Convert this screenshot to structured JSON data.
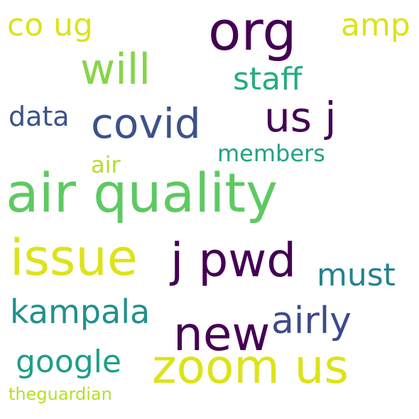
{
  "words": [
    {
      "id": "air-quality",
      "text": "air quality",
      "color": "#5ec962"
    },
    {
      "id": "org",
      "text": "org",
      "color": "#440154"
    },
    {
      "id": "zoom-us",
      "text": "zoom us",
      "color": "#dde318"
    },
    {
      "id": "issue",
      "text": "issue",
      "color": "#dde318"
    },
    {
      "id": "j-pwd",
      "text": "j pwd",
      "color": "#440154"
    },
    {
      "id": "new",
      "text": "new",
      "color": "#440154"
    },
    {
      "id": "will",
      "text": "will",
      "color": "#86d549"
    },
    {
      "id": "covid",
      "text": "covid",
      "color": "#3b528b"
    },
    {
      "id": "us-j",
      "text": "us j",
      "color": "#440154"
    },
    {
      "id": "kampala",
      "text": "kampala",
      "color": "#21918c"
    },
    {
      "id": "airly",
      "text": "airly",
      "color": "#3e4a89"
    },
    {
      "id": "google",
      "text": "google",
      "color": "#1f9e89"
    },
    {
      "id": "co-ug",
      "text": "co ug",
      "color": "#dde318"
    },
    {
      "id": "staff",
      "text": "staff",
      "color": "#25ab82"
    },
    {
      "id": "must",
      "text": "must",
      "color": "#26828e"
    },
    {
      "id": "amp",
      "text": "amp",
      "color": "#dde318"
    },
    {
      "id": "data",
      "text": "data",
      "color": "#3b528b"
    },
    {
      "id": "members",
      "text": "members",
      "color": "#20a386"
    },
    {
      "id": "air",
      "text": "air",
      "color": "#b5de2b"
    },
    {
      "id": "theguardian",
      "text": "theguardian",
      "color": "#b5de2b"
    }
  ]
}
